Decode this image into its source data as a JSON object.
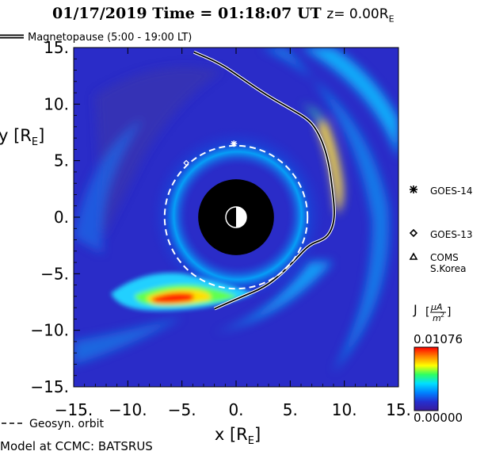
{
  "header": {
    "date": "01/17/2019",
    "time_label": "Time =",
    "time_value": "01:18:07",
    "time_unit": "UT",
    "z_label": "z=",
    "z_value": "0.00",
    "z_unit": "R",
    "z_unit_sub": "E"
  },
  "legend": {
    "magnetopause": "Magnetopause (5:00 - 19:00 LT)",
    "geosyn": "Geosyn. orbit"
  },
  "footer": {
    "model": "Model at CCMC: BATSRUS"
  },
  "colorbar": {
    "label_j": "J",
    "label_num": "μA",
    "label_den": "m",
    "label_pow": "2",
    "max": "0.01076",
    "min": "0.00000",
    "colors": [
      "#3a1a9a",
      "#2430d0",
      "#0080ff",
      "#00e0ff",
      "#30ff60",
      "#ffff00",
      "#ff8000",
      "#ff0000"
    ]
  },
  "satellites": [
    {
      "name": "GOES-14",
      "marker": "asterisk"
    },
    {
      "name": "GOES-13",
      "marker": "diamond"
    },
    {
      "name": "COMS",
      "name2": "S.Korea",
      "marker": "triangle"
    }
  ],
  "chart_data": {
    "type": "heatmap",
    "title": "01/17/2019 Time = 01:18:07 UT z= 0.00RE",
    "xlabel": "x [RE]",
    "ylabel": "y [RE]",
    "xlim": [
      -15,
      15
    ],
    "ylim": [
      -15,
      15
    ],
    "x_ticks": [
      "-15.",
      "-10.",
      "-5.",
      "0.",
      "5.",
      "10.",
      "15."
    ],
    "y_ticks": [
      "15.",
      "10.",
      "5.",
      "0.",
      "-5.",
      "-10.",
      "-15."
    ],
    "x_tick_values": [
      -15,
      -10,
      -5,
      0,
      5,
      10,
      15
    ],
    "y_tick_values": [
      15,
      10,
      5,
      0,
      -5,
      -10,
      -15
    ],
    "colorbar_range": [
      0.0,
      0.01076
    ],
    "inner_boundary_radius": 3.5,
    "geosynchronous_radius": 6.6,
    "magnetopause": [
      [
        -3.9,
        14.6
      ],
      [
        -1.5,
        13.6
      ],
      [
        0.5,
        12.3
      ],
      [
        2.8,
        10.8
      ],
      [
        5.0,
        9.6
      ],
      [
        6.6,
        8.7
      ],
      [
        7.4,
        7.8
      ],
      [
        8.1,
        6.4
      ],
      [
        8.6,
        4.6
      ],
      [
        8.9,
        2.5
      ],
      [
        9.1,
        0.6
      ],
      [
        9.0,
        -0.6
      ],
      [
        8.6,
        -1.5
      ],
      [
        8.0,
        -2.0
      ],
      [
        6.8,
        -2.4
      ],
      [
        5.6,
        -3.6
      ],
      [
        4.2,
        -5.0
      ],
      [
        2.6,
        -6.2
      ],
      [
        0.6,
        -7.0
      ],
      [
        -2.0,
        -8.1
      ]
    ],
    "satellites": [
      {
        "name": "GOES-14",
        "x": -0.2,
        "y": 6.5
      },
      {
        "name": "GOES-13",
        "x": -4.6,
        "y": 4.8
      },
      {
        "name": "COMS",
        "x": null,
        "y": null
      }
    ]
  }
}
